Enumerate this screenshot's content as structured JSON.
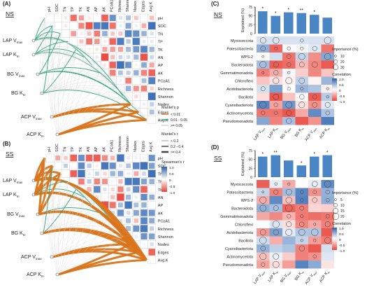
{
  "chart_data": [
    {
      "panel": "(A)",
      "type": "heatmap",
      "subtitle": "NS",
      "variables": [
        "pH",
        "SOC",
        "TN",
        "TP",
        "TK",
        "AN",
        "AP",
        "AK",
        "PCoA1",
        "Richness",
        "Shannon",
        "Nodes",
        "Edges",
        "Avg.K"
      ],
      "sources": [
        "LAP Vmax",
        "LAP Km",
        "BG Vmax",
        "BG Km",
        "ACP Vmax",
        "ACP Km"
      ],
      "legend_mantel_p": {
        "title": "Mantel's p",
        "items": [
          "< 0.01",
          "0.01 - 0.05",
          ">= 0.05"
        ],
        "colors": [
          "#d9741a",
          "#29a37a",
          "#d4d4d4"
        ]
      },
      "legend_mantel_r": {
        "title": "Mantel's r",
        "items": [
          "< 0.2",
          "0.2 - 0.4",
          ">= 0.4"
        ]
      },
      "legend_spearman": {
        "title": "Spearman's r",
        "ticks": [
          "1.0",
          "0.5",
          "0",
          "-0.5",
          "-1.0"
        ]
      }
    },
    {
      "panel": "(B)",
      "type": "heatmap",
      "subtitle": "SS",
      "variables": [
        "pH",
        "SOC",
        "TN",
        "TP",
        "TK",
        "AN",
        "AP",
        "AK",
        "PCoA1",
        "Richness",
        "Shannon",
        "Nodes",
        "Edges",
        "Avg.K"
      ],
      "sources": [
        "LAP Vmax",
        "LAP Km",
        "BG Vmax",
        "BG Km",
        "ACP Vmax",
        "ACP Km"
      ]
    },
    {
      "panel": "(C)",
      "type": "bar",
      "subtitle": "NS",
      "ylabel": "Explained (%)",
      "ylim": [
        0,
        75
      ],
      "yticks": [
        "0",
        "25",
        "50",
        "75"
      ],
      "categories": [
        "LAP Vmax",
        "LAP Km",
        "BG Vmax",
        "BG Km",
        "ACP Vmax",
        "ACP Km"
      ],
      "values": [
        63,
        50,
        60,
        58,
        53,
        45
      ],
      "significance": [
        "*",
        "*",
        "*",
        "**",
        "*",
        ""
      ],
      "taxa": [
        "Myxococcota",
        "Patescibacteria",
        "WPS-2",
        "Bacteroidota",
        "Gemmatimonadota",
        "Chloroflexi",
        "Acidobacteriota",
        "Bacillota",
        "Cyanobacteriota",
        "Actinomycetota",
        "Pseudomonadota"
      ]
    },
    {
      "panel": "(D)",
      "type": "bar",
      "subtitle": "SS",
      "ylabel": "Explained (%)",
      "ylim": [
        0,
        75
      ],
      "yticks": [
        "0",
        "25",
        "50",
        "75"
      ],
      "categories": [
        "LAP Vmax",
        "LAP Km",
        "BG Vmax",
        "BG Km",
        "ACP Vmax",
        "ACP Km"
      ],
      "values": [
        58,
        62,
        47,
        33,
        58,
        62
      ],
      "significance": [
        "*",
        "**",
        "",
        "*",
        "*",
        "*"
      ],
      "taxa": [
        "Myxococcota",
        "Patescibacteria",
        "WPS-2",
        "Bacteroidota",
        "Gemmatimonadota",
        "Chloroflexi",
        "Acidobacteriota",
        "Bacillota",
        "Cyanobacteriota",
        "Actinomycetota",
        "Pseudomonadota"
      ]
    }
  ],
  "legend_importance": {
    "title": "Importance (%)",
    "items_c": [
      "10",
      "20",
      "30"
    ],
    "items_d": [
      "5",
      "10",
      "15",
      "20"
    ]
  },
  "legend_correlation": {
    "title": "Correlation",
    "ticks": [
      "1.0",
      "0.5",
      "0",
      "-0.5",
      "-1.0"
    ]
  },
  "colors": {
    "positive": "#3b6fb6",
    "negative": "#e8443a",
    "bar": "#4a86c5",
    "sig_strong": "#d9741a",
    "sig_mid": "#29a37a",
    "nonsig": "#d4d4d4"
  }
}
